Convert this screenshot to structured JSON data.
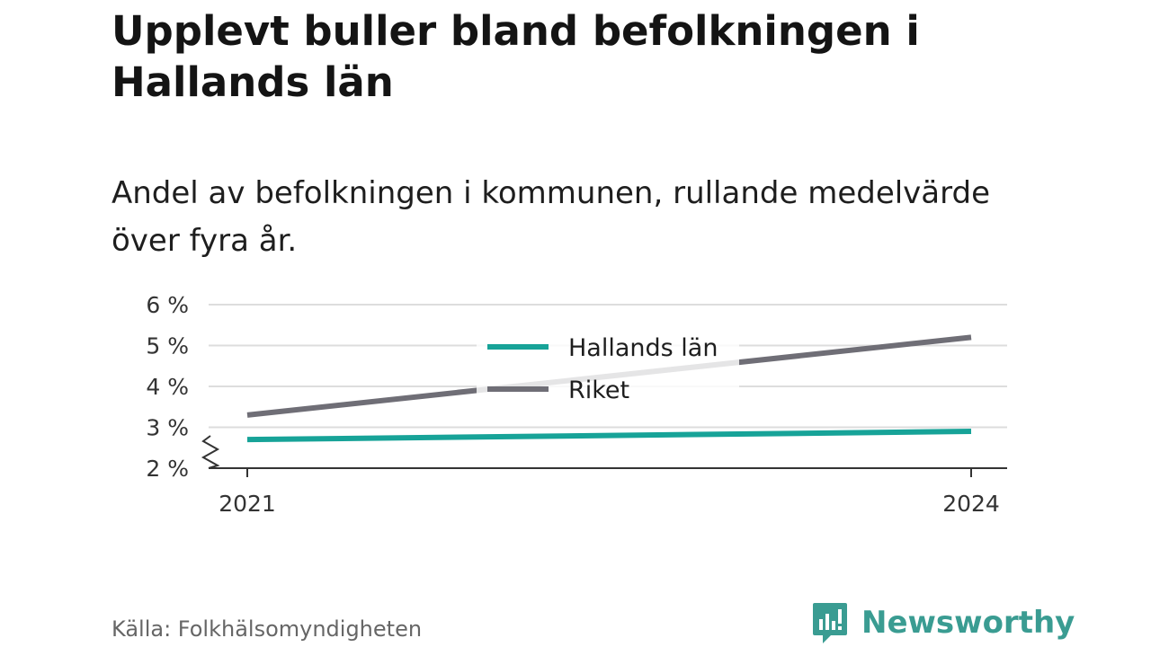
{
  "title": "Upplevt buller bland befolkningen i Hallands län",
  "subtitle": "Andel av befolkningen i kommunen, rullande medelvärde över fyra år.",
  "source": "Källa: Folkhälsomyndigheten",
  "brand": {
    "name": "Newsworthy",
    "icon": "newsworthy-logo-icon",
    "color": "#3a9c92"
  },
  "chart_data": {
    "type": "line",
    "x": [
      "2021",
      "2024"
    ],
    "series": [
      {
        "name": "Hallands län",
        "values": [
          2.7,
          2.9
        ],
        "color": "#17a398"
      },
      {
        "name": "Riket",
        "values": [
          3.3,
          5.2
        ],
        "color": "#6f6e76"
      }
    ],
    "y_ticks": [
      2,
      3,
      4,
      5,
      6
    ],
    "y_tick_labels": [
      "2 %",
      "3 %",
      "4 %",
      "5 %",
      "6 %"
    ],
    "ylim": [
      2,
      6
    ],
    "y_axis_break": true,
    "grid": true,
    "legend_position": "top-center"
  }
}
